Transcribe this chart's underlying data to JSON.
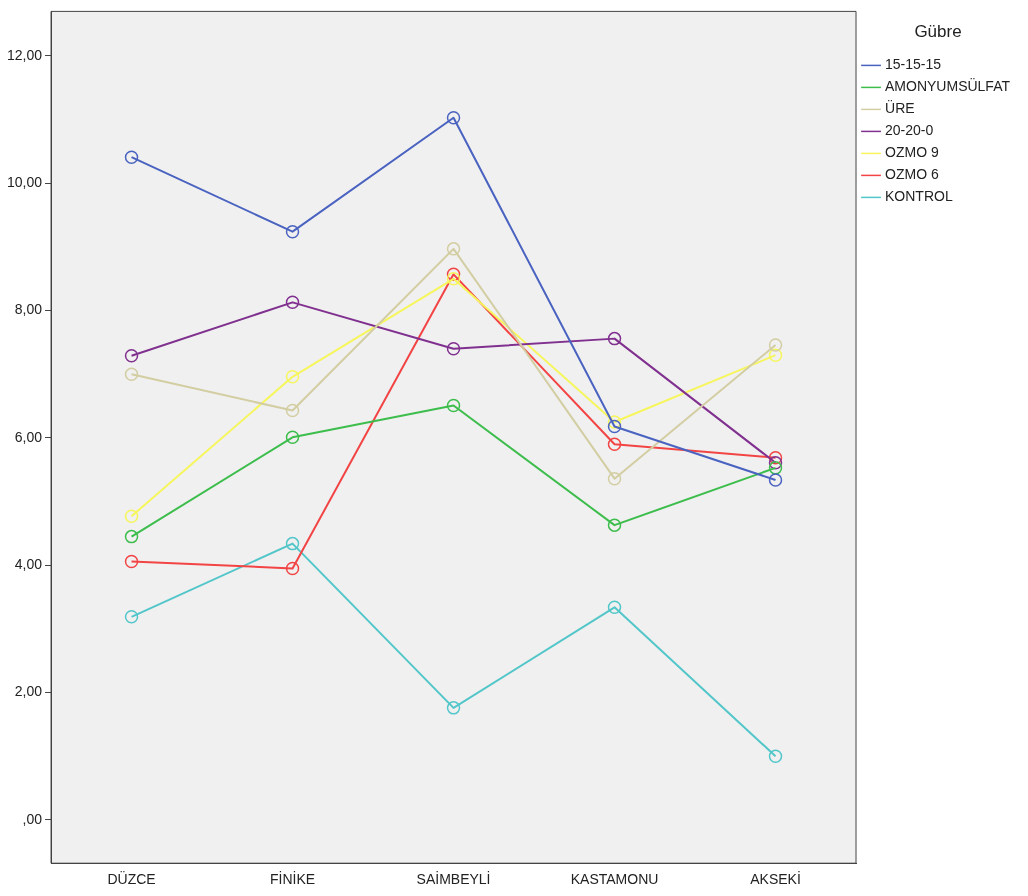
{
  "chart_data": {
    "type": "line",
    "legend_title": "Gübre",
    "categories": [
      "DÜZCE",
      "FİNİKE",
      "SAİMBEYLİ",
      "KASTAMONU",
      "AKSEKİ"
    ],
    "ylim": [
      -0.68,
      12.7
    ],
    "yticks": [
      {
        "value": 0,
        "label": ",00"
      },
      {
        "value": 2,
        "label": "2,00"
      },
      {
        "value": 4,
        "label": "4,00"
      },
      {
        "value": 6,
        "label": "6,00"
      },
      {
        "value": 8,
        "label": "8,00"
      },
      {
        "value": 10,
        "label": "10,00"
      },
      {
        "value": 12,
        "label": "12,00"
      }
    ],
    "grid": false,
    "legend": "right",
    "marker": "circle",
    "line_style": "solid",
    "series": [
      {
        "name": "15-15-15",
        "color": "#4a63c0",
        "values": [
          10.41,
          9.24,
          11.03,
          6.18,
          5.34
        ]
      },
      {
        "name": "AMONYUMSÜLFAT",
        "color": "#3dbd4c",
        "values": [
          4.45,
          6.01,
          6.51,
          4.63,
          5.53
        ]
      },
      {
        "name": "ÜRE",
        "color": "#d3cda2",
        "values": [
          7.0,
          6.43,
          8.97,
          5.36,
          7.46
        ]
      },
      {
        "name": "20-20-0",
        "color": "#80308f",
        "values": [
          7.29,
          8.13,
          7.4,
          7.56,
          5.61
        ]
      },
      {
        "name": "OZMO 9",
        "color": "#f6f65c",
        "values": [
          4.77,
          6.96,
          8.5,
          6.25,
          7.3
        ]
      },
      {
        "name": "OZMO 6",
        "color": "#f24444",
        "values": [
          4.06,
          3.95,
          8.57,
          5.9,
          5.69
        ]
      },
      {
        "name": "KONTROL",
        "color": "#52c6c9",
        "values": [
          3.19,
          4.34,
          1.76,
          3.34,
          1.0
        ]
      }
    ]
  }
}
